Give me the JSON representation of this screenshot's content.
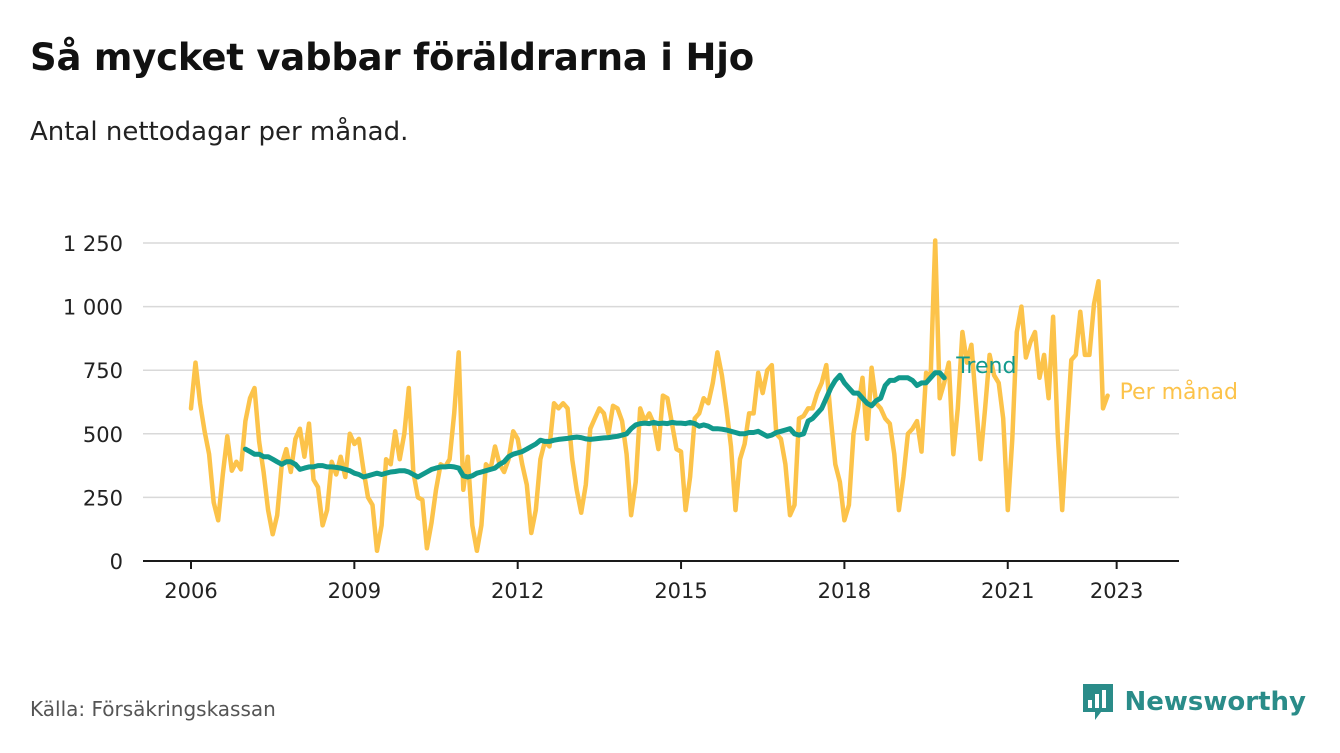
{
  "title": "Så mycket vabbar föräldrarna i Hjo",
  "subtitle": "Antal nettodagar per månad.",
  "source": "Källa: Försäkringskassan",
  "brand": "Newsworthy",
  "colors": {
    "trend": "#11998c",
    "monthly": "#fcc34a",
    "grid": "#d9d9d9",
    "brand": "#2a8c89"
  },
  "chart_data": {
    "type": "line",
    "x_axis": {
      "type": "date",
      "range": [
        "2005-09",
        "2024-01"
      ],
      "tick_values": [
        2006,
        2009,
        2012,
        2015,
        2018,
        2021,
        2023
      ],
      "tick_labels": [
        "2006",
        "2009",
        "2012",
        "2015",
        "2018",
        "2021",
        "2023"
      ]
    },
    "y_axis": {
      "range": [
        0,
        1300
      ],
      "ticks": [
        0,
        250,
        500,
        750,
        1000,
        1250
      ],
      "tick_labels": [
        "0",
        "250",
        "500",
        "750",
        "1 000",
        "1 250"
      ]
    },
    "grid": true,
    "series": [
      {
        "name": "Per månad",
        "color": "#fcc34a",
        "start": "2006-01",
        "values": [
          600,
          780,
          620,
          510,
          420,
          230,
          160,
          340,
          490,
          355,
          390,
          360,
          550,
          640,
          680,
          470,
          350,
          200,
          105,
          180,
          380,
          440,
          350,
          480,
          520,
          410,
          540,
          320,
          290,
          140,
          200,
          390,
          340,
          410,
          330,
          500,
          460,
          480,
          360,
          250,
          220,
          40,
          140,
          400,
          380,
          510,
          400,
          500,
          680,
          350,
          250,
          240,
          50,
          150,
          280,
          380,
          370,
          400,
          580,
          820,
          280,
          410,
          140,
          40,
          140,
          380,
          360,
          450,
          380,
          350,
          400,
          510,
          480,
          380,
          300,
          110,
          200,
          400,
          470,
          450,
          620,
          600,
          620,
          600,
          400,
          280,
          190,
          300,
          520,
          560,
          600,
          580,
          500,
          610,
          600,
          550,
          420,
          180,
          310,
          600,
          550,
          580,
          540,
          440,
          650,
          640,
          540,
          440,
          430,
          200,
          330,
          560,
          580,
          640,
          620,
          700,
          820,
          730,
          600,
          450,
          200,
          400,
          460,
          580,
          580,
          740,
          660,
          750,
          770,
          500,
          480,
          380,
          180,
          220,
          560,
          570,
          600,
          600,
          660,
          700,
          770,
          560,
          380,
          310,
          160,
          220,
          500,
          600,
          720,
          480,
          760,
          620,
          600,
          560,
          540,
          420,
          200,
          330,
          500,
          520,
          550,
          430,
          740,
          720,
          1260,
          640,
          700,
          780,
          420,
          600,
          900,
          780,
          850,
          620,
          400,
          600,
          810,
          730,
          700,
          560,
          200,
          480,
          900,
          1000,
          800,
          860,
          900,
          720,
          810,
          640,
          960,
          500,
          200,
          500,
          790,
          810,
          980,
          810,
          810,
          1010,
          1100,
          600,
          650
        ],
        "end_label": "Per månad"
      },
      {
        "name": "Trend",
        "color": "#11998c",
        "start": "2007-01",
        "values": [
          440,
          430,
          420,
          420,
          410,
          410,
          400,
          390,
          380,
          390,
          390,
          380,
          360,
          365,
          370,
          370,
          375,
          375,
          370,
          370,
          368,
          365,
          360,
          355,
          345,
          340,
          330,
          335,
          340,
          345,
          340,
          345,
          350,
          352,
          355,
          355,
          350,
          340,
          330,
          340,
          350,
          360,
          365,
          370,
          370,
          372,
          370,
          365,
          335,
          330,
          335,
          345,
          350,
          355,
          360,
          365,
          380,
          390,
          410,
          420,
          425,
          430,
          440,
          450,
          460,
          475,
          470,
          470,
          475,
          478,
          480,
          482,
          485,
          487,
          485,
          480,
          478,
          480,
          482,
          484,
          485,
          488,
          490,
          495,
          500,
          520,
          535,
          540,
          542,
          540,
          545,
          540,
          542,
          540,
          545,
          542,
          542,
          540,
          545,
          540,
          530,
          535,
          530,
          520,
          520,
          518,
          515,
          510,
          505,
          500,
          500,
          505,
          505,
          510,
          500,
          490,
          495,
          505,
          510,
          515,
          520,
          500,
          495,
          500,
          550,
          560,
          580,
          600,
          640,
          680,
          710,
          730,
          700,
          680,
          660,
          660,
          640,
          620,
          610,
          630,
          640,
          690,
          710,
          710,
          720,
          720,
          720,
          710,
          690,
          700,
          700,
          720,
          740,
          740,
          720
        ],
        "end_label": "Trend"
      }
    ]
  }
}
